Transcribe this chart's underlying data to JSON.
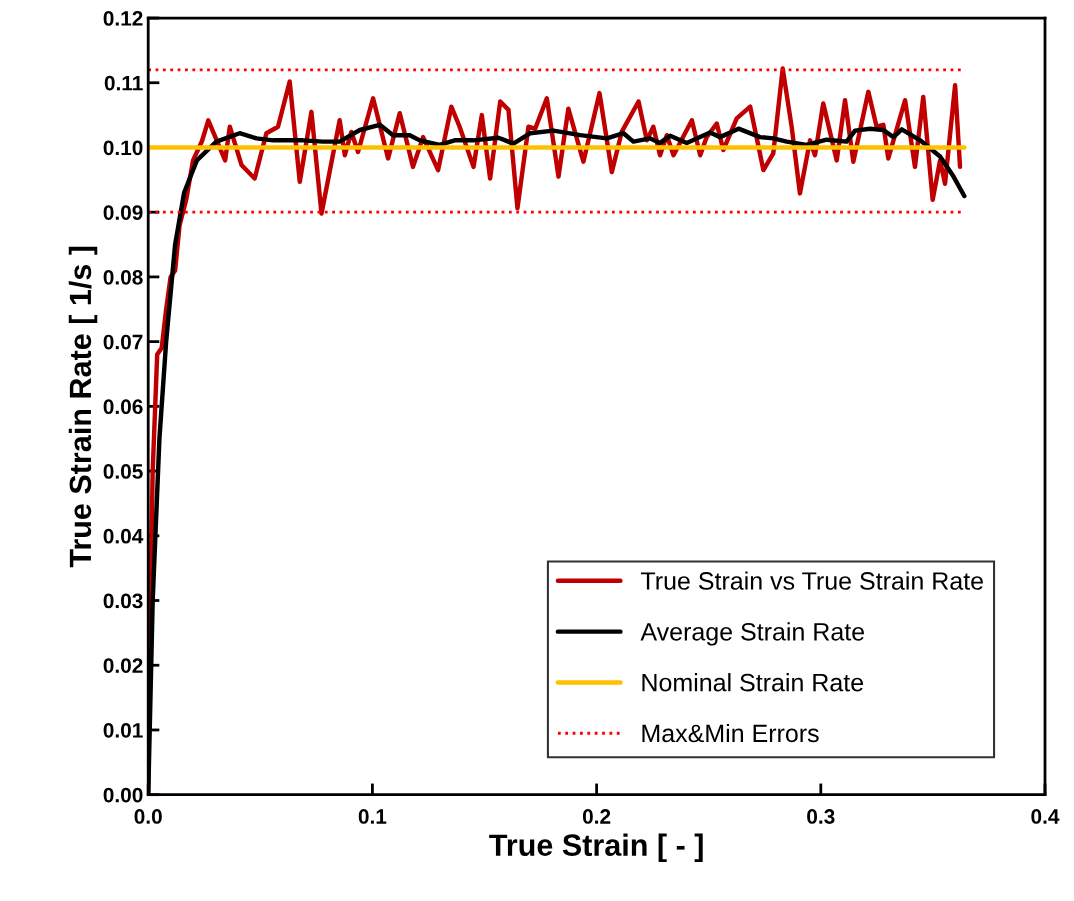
{
  "chart_data": {
    "type": "line",
    "xlabel": "True Strain [ - ]",
    "ylabel": "True Strain Rate [ 1/s ]",
    "xlim": [
      0,
      0.4
    ],
    "xticks": [
      {
        "value": 0,
        "label": "0.0"
      },
      0.1,
      0.2,
      0.3,
      0.4
    ],
    "ylim": [
      0,
      0.12
    ],
    "yticks": [
      {
        "value": 0,
        "label": "0.00"
      },
      0.01,
      0.02,
      0.03,
      0.04,
      0.05,
      0.06,
      0.07,
      0.08,
      0.09,
      {
        "value": 0.1,
        "label": "0.10"
      },
      0.11,
      0.12
    ],
    "grid": false,
    "legend": "bottom right",
    "marker": "none",
    "series": [
      {
        "name": "True Strain vs True Strain Rate",
        "color": "#c00000",
        "line_style": "solid",
        "x": [
          0,
          0.001,
          0.002,
          0.004,
          0.006,
          0.008,
          0.01,
          0.012,
          0.014,
          0.017,
          0.02,
          0.024,
          0.0268,
          0.0343,
          0.0364,
          0.0416,
          0.0475,
          0.0527,
          0.0579,
          0.0631,
          0.0676,
          0.0728,
          0.0773,
          0.0854,
          0.0877,
          0.0906,
          0.0936,
          0.1003,
          0.107,
          0.1122,
          0.1181,
          0.1226,
          0.1293,
          0.1352,
          0.1389,
          0.1451,
          0.1488,
          0.1525,
          0.157,
          0.1607,
          0.1647,
          0.1696,
          0.1726,
          0.1778,
          0.183,
          0.1874,
          0.1941,
          0.2013,
          0.2068,
          0.2112,
          0.2187,
          0.2224,
          0.2253,
          0.2283,
          0.2313,
          0.2343,
          0.2425,
          0.2462,
          0.2491,
          0.2536,
          0.2565,
          0.2625,
          0.2685,
          0.2744,
          0.2788,
          0.283,
          0.287,
          0.2907,
          0.2952,
          0.2974,
          0.3011,
          0.3071,
          0.3108,
          0.3145,
          0.3212,
          0.3249,
          0.3279,
          0.3301,
          0.3376,
          0.342,
          0.3457,
          0.3499,
          0.3532,
          0.3554,
          0.3599,
          0.3621
        ],
        "values": [
          0,
          0.03,
          0.05,
          0.068,
          0.069,
          0.075,
          0.08,
          0.081,
          0.088,
          0.092,
          0.098,
          0.101,
          0.1042,
          0.098,
          0.1032,
          0.0973,
          0.0952,
          0.1022,
          0.1032,
          0.1102,
          0.0947,
          0.1055,
          0.0898,
          0.1042,
          0.0988,
          0.1024,
          0.0993,
          0.1076,
          0.0983,
          0.1053,
          0.097,
          0.1016,
          0.0965,
          0.1063,
          0.1032,
          0.097,
          0.105,
          0.0952,
          0.1071,
          0.1058,
          0.0906,
          0.1032,
          0.1029,
          0.1076,
          0.0955,
          0.106,
          0.0978,
          0.1084,
          0.0962,
          0.1024,
          0.1071,
          0.1011,
          0.1032,
          0.0988,
          0.1019,
          0.0988,
          0.1042,
          0.0988,
          0.1016,
          0.1037,
          0.0996,
          0.1045,
          0.1063,
          0.0965,
          0.0991,
          0.1122,
          0.1032,
          0.0929,
          0.1011,
          0.0988,
          0.1068,
          0.098,
          0.1073,
          0.0978,
          0.1086,
          0.1032,
          0.1035,
          0.0983,
          0.1073,
          0.097,
          0.1078,
          0.0919,
          0.098,
          0.0944,
          0.1096,
          0.097
        ]
      },
      {
        "name": "Average Strain Rate",
        "color": "#000000",
        "line_style": "solid",
        "x": [
          0,
          0.002,
          0.005,
          0.008,
          0.012,
          0.016,
          0.0217,
          0.0304,
          0.0408,
          0.0483,
          0.0557,
          0.0691,
          0.078,
          0.0854,
          0.0944,
          0.1033,
          0.1092,
          0.1167,
          0.1211,
          0.13,
          0.1367,
          0.1451,
          0.1562,
          0.1629,
          0.1704,
          0.1808,
          0.1927,
          0.2046,
          0.212,
          0.2164,
          0.2239,
          0.2283,
          0.2328,
          0.2402,
          0.2506,
          0.2551,
          0.2633,
          0.2729,
          0.2788,
          0.2848,
          0.2937,
          0.3026,
          0.3115,
          0.3153,
          0.322,
          0.3279,
          0.3324,
          0.3361,
          0.3443,
          0.3532,
          0.3592,
          0.364
        ],
        "values": [
          0,
          0.03,
          0.055,
          0.07,
          0.085,
          0.093,
          0.098,
          0.1009,
          0.1022,
          0.1014,
          0.1011,
          0.1011,
          0.1009,
          0.1009,
          0.1027,
          0.1035,
          0.1019,
          0.1019,
          0.1011,
          0.1004,
          0.1011,
          0.1011,
          0.1015,
          0.1006,
          0.1022,
          0.1026,
          0.1019,
          0.1014,
          0.1022,
          0.1009,
          0.1014,
          0.1007,
          0.1018,
          0.1007,
          0.1023,
          0.1016,
          0.1029,
          0.1016,
          0.1014,
          0.1009,
          0.1004,
          0.1012,
          0.1009,
          0.1026,
          0.1029,
          0.1027,
          0.1016,
          0.1028,
          0.1011,
          0.0986,
          0.0955,
          0.0925
        ]
      },
      {
        "name": "Nominal Strain Rate",
        "color": "#ffc000",
        "line_style": "solid",
        "x": [
          0,
          0.364
        ],
        "values": [
          0.1,
          0.1
        ]
      },
      {
        "name": "Max&Min Errors",
        "color": "#ff0000",
        "line_style": "dotted",
        "x": [
          0,
          0.363
        ],
        "values": [
          0.112,
          0.112
        ]
      },
      {
        "color": "#ff0000",
        "line_style": "dotted",
        "x": [
          0,
          0.363
        ],
        "values": [
          0.09,
          0.09
        ]
      }
    ]
  }
}
